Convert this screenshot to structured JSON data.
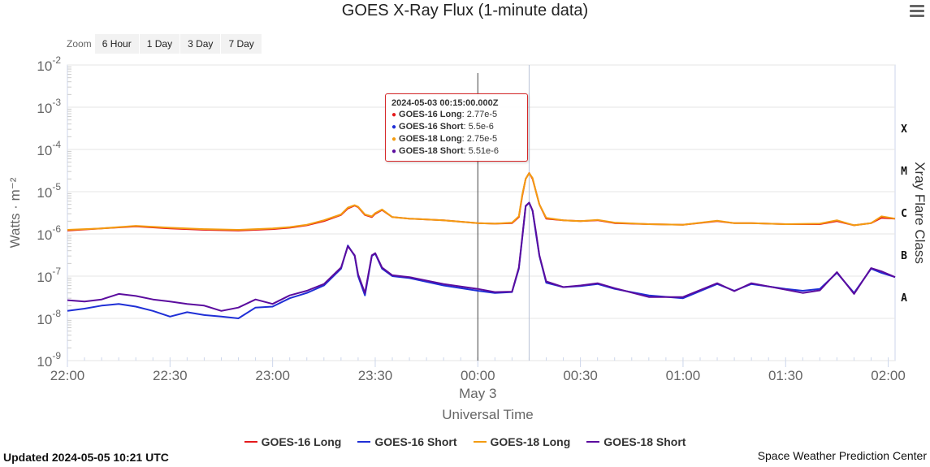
{
  "title": "GOES X-Ray Flux (1-minute data)",
  "zoom": {
    "label": "Zoom",
    "options": [
      "6 Hour",
      "1 Day",
      "3 Day",
      "7 Day"
    ]
  },
  "updated": "Updated 2024-05-05 10:21 UTC",
  "credit": "Space Weather Prediction Center",
  "tooltip": {
    "time": "2024-05-03 00:15:00.000Z",
    "rows": [
      {
        "name": "GOES-16 Long",
        "value": "2.77e-5",
        "color": "#e41a1c"
      },
      {
        "name": "GOES-16 Short",
        "value": "5.5e-6",
        "color": "#1f2fd6"
      },
      {
        "name": "GOES-18 Long",
        "value": "2.75e-5",
        "color": "#f39c12"
      },
      {
        "name": "GOES-18 Short",
        "value": "5.51e-6",
        "color": "#5b0c9e"
      }
    ]
  },
  "chart_data": {
    "type": "line",
    "title": "GOES X-Ray Flux (1-minute data)",
    "xlabel": "Universal Time",
    "ylabel": "Watts · m⁻²",
    "y2label": "Xray Flare Class",
    "yscale": "log",
    "ylim": [
      1e-09,
      0.01
    ],
    "y_ticks": [
      {
        "base": "10",
        "exp": "-2"
      },
      {
        "base": "10",
        "exp": "-3"
      },
      {
        "base": "10",
        "exp": "-4"
      },
      {
        "base": "10",
        "exp": "-5"
      },
      {
        "base": "10",
        "exp": "-6"
      },
      {
        "base": "10",
        "exp": "-7"
      },
      {
        "base": "10",
        "exp": "-8"
      },
      {
        "base": "10",
        "exp": "-9"
      }
    ],
    "flare_classes": [
      "X",
      "M",
      "C",
      "B",
      "A"
    ],
    "x_ticks": [
      "22:00",
      "22:30",
      "23:00",
      "23:30",
      "00:00",
      "00:30",
      "01:00",
      "01:30",
      "02:00"
    ],
    "date_label": "May 3",
    "x_range_minutes": [
      -120,
      122
    ],
    "crosshair_minutes": 15,
    "day_boundary_minutes": 0,
    "x_unit": "minutes relative to 2024-05-03 00:00 UTC",
    "series": [
      {
        "name": "GOES-16 Long",
        "color": "#e41a1c",
        "x": [
          -120,
          -110,
          -100,
          -90,
          -80,
          -70,
          -60,
          -55,
          -50,
          -45,
          -40,
          -38,
          -36,
          -35,
          -33,
          -31,
          -30,
          -28,
          -25,
          -20,
          -10,
          0,
          5,
          10,
          12,
          13,
          14,
          15,
          16,
          17,
          18,
          20,
          25,
          30,
          35,
          40,
          50,
          60,
          70,
          75,
          80,
          90,
          100,
          105,
          110,
          115,
          118,
          122
        ],
        "y": [
          1.2e-06,
          1.35e-06,
          1.5e-06,
          1.35e-06,
          1.25e-06,
          1.2e-06,
          1.3e-06,
          1.4e-06,
          1.6e-06,
          2e-06,
          2.8e-06,
          4e-06,
          4.7e-06,
          4.3e-06,
          2.8e-06,
          2.5e-06,
          3e-06,
          3.7e-06,
          2.5e-06,
          2.3e-06,
          2.1e-06,
          1.8e-06,
          1.75e-06,
          1.8e-06,
          2.5e-06,
          8e-06,
          2e-05,
          2.77e-05,
          2e-05,
          1e-05,
          5e-06,
          2.3e-06,
          2.1e-06,
          2e-06,
          2.1e-06,
          1.8e-06,
          1.7e-06,
          1.65e-06,
          2e-06,
          1.8e-06,
          1.8e-06,
          1.7e-06,
          1.7e-06,
          2e-06,
          1.6e-06,
          1.8e-06,
          2.4e-06,
          2.3e-06
        ]
      },
      {
        "name": "GOES-16 Short",
        "color": "#1f2fd6",
        "x": [
          -120,
          -115,
          -110,
          -105,
          -100,
          -95,
          -90,
          -85,
          -80,
          -75,
          -70,
          -65,
          -60,
          -55,
          -50,
          -45,
          -40,
          -38,
          -36,
          -35,
          -33,
          -31,
          -30,
          -28,
          -25,
          -20,
          -10,
          0,
          5,
          10,
          12,
          13,
          14,
          15,
          16,
          17,
          18,
          20,
          25,
          30,
          35,
          40,
          50,
          60,
          70,
          75,
          80,
          90,
          95,
          100,
          105,
          110,
          115,
          118,
          122
        ],
        "y": [
          1.5e-08,
          1.7e-08,
          2e-08,
          2.2e-08,
          1.9e-08,
          1.5e-08,
          1.1e-08,
          1.4e-08,
          1.2e-08,
          1.1e-08,
          1e-08,
          1.8e-08,
          1.9e-08,
          3e-08,
          4e-08,
          6e-08,
          1.5e-07,
          5.3e-07,
          3e-07,
          1e-07,
          3.5e-08,
          3e-07,
          3.4e-07,
          1.5e-07,
          1e-07,
          9e-08,
          6e-08,
          4.5e-08,
          4e-08,
          4.2e-08,
          1.5e-07,
          8e-07,
          4.5e-06,
          5.5e-06,
          3.5e-06,
          1e-06,
          3e-07,
          7e-08,
          5.5e-08,
          5.8e-08,
          6.5e-08,
          5e-08,
          3.5e-08,
          3e-08,
          6.5e-08,
          4.5e-08,
          6.5e-08,
          5e-08,
          4.5e-08,
          5e-08,
          1.2e-07,
          4e-08,
          1.5e-07,
          1.2e-07,
          9.5e-08
        ]
      },
      {
        "name": "GOES-18 Long",
        "color": "#f39c12",
        "x": [
          -120,
          -110,
          -100,
          -90,
          -80,
          -70,
          -60,
          -55,
          -50,
          -45,
          -40,
          -38,
          -36,
          -35,
          -33,
          -31,
          -30,
          -28,
          -25,
          -20,
          -10,
          0,
          5,
          10,
          12,
          13,
          14,
          15,
          16,
          17,
          18,
          20,
          25,
          30,
          35,
          40,
          50,
          60,
          70,
          75,
          80,
          90,
          100,
          105,
          110,
          115,
          118,
          122
        ],
        "y": [
          1.25e-06,
          1.35e-06,
          1.55e-06,
          1.4e-06,
          1.3e-06,
          1.25e-06,
          1.35e-06,
          1.45e-06,
          1.65e-06,
          2.1e-06,
          2.9e-06,
          4.2e-06,
          4.8e-06,
          4.4e-06,
          2.9e-06,
          2.6e-06,
          3.1e-06,
          3.8e-06,
          2.5e-06,
          2.3e-06,
          2.1e-06,
          1.8e-06,
          1.75e-06,
          1.85e-06,
          2.6e-06,
          8.5e-06,
          2e-05,
          2.75e-05,
          2.1e-05,
          1e-05,
          5e-06,
          2.4e-06,
          2.1e-06,
          2e-06,
          2.15e-06,
          1.85e-06,
          1.7e-06,
          1.65e-06,
          2.05e-06,
          1.8e-06,
          1.8e-06,
          1.7e-06,
          1.75e-06,
          2.1e-06,
          1.6e-06,
          1.8e-06,
          2.6e-06,
          2.3e-06
        ]
      },
      {
        "name": "GOES-18 Short",
        "color": "#5b0c9e",
        "x": [
          -120,
          -115,
          -110,
          -105,
          -100,
          -95,
          -90,
          -85,
          -80,
          -75,
          -70,
          -65,
          -60,
          -55,
          -50,
          -45,
          -40,
          -38,
          -36,
          -35,
          -33,
          -31,
          -30,
          -28,
          -25,
          -20,
          -10,
          0,
          5,
          10,
          12,
          13,
          14,
          15,
          16,
          17,
          18,
          20,
          25,
          30,
          35,
          40,
          50,
          60,
          70,
          75,
          80,
          90,
          95,
          100,
          105,
          110,
          115,
          118,
          122
        ],
        "y": [
          2.7e-08,
          2.5e-08,
          2.8e-08,
          3.8e-08,
          3.4e-08,
          2.8e-08,
          2.5e-08,
          2.2e-08,
          2e-08,
          1.5e-08,
          1.8e-08,
          2.8e-08,
          2.2e-08,
          3.5e-08,
          4.5e-08,
          6.5e-08,
          1.6e-07,
          5.1e-07,
          3.1e-07,
          1.1e-07,
          4e-08,
          3.1e-07,
          3.5e-07,
          1.6e-07,
          1.05e-07,
          9.5e-08,
          6.5e-08,
          5e-08,
          4.2e-08,
          4.3e-08,
          1.6e-07,
          8.5e-07,
          4.6e-06,
          5.51e-06,
          3.6e-06,
          1.1e-06,
          3.1e-07,
          7.5e-08,
          5.5e-08,
          6e-08,
          6.8e-08,
          5.2e-08,
          3.2e-08,
          3.2e-08,
          6.8e-08,
          4.4e-08,
          6.8e-08,
          4.8e-08,
          4e-08,
          4.6e-08,
          1.25e-07,
          3.8e-08,
          1.55e-07,
          1.3e-07,
          9.5e-08
        ]
      }
    ]
  }
}
